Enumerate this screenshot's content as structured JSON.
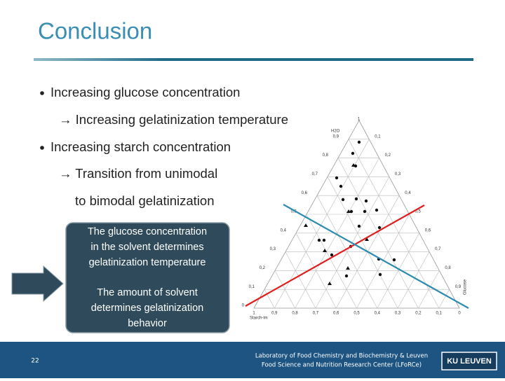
{
  "title": "Conclusion",
  "bullets": [
    {
      "text": "Increasing glucose concentration",
      "sub": [
        "→ Increasing gelatinization temperature"
      ]
    },
    {
      "text": "Increasing starch concentration",
      "sub": [
        "→ Transition from unimodal",
        "to bimodal gelatinization"
      ]
    }
  ],
  "box": {
    "top": [
      "The glucose concentration",
      "in the solvent determines",
      "gelatinization temperature"
    ],
    "bottom": [
      "The amount of solvent",
      "determines gelatinization",
      "behavior"
    ]
  },
  "diagram": {
    "top_label": "1",
    "top_name": "H2O",
    "right_name": "Glucose",
    "left_name": "Starch-lm",
    "left_labels": [
      "0,9",
      "0,8",
      "0,7",
      "0,6",
      "0,5",
      "0,4",
      "0,3",
      "0,2",
      "0,1",
      "0"
    ],
    "right_labels": [
      "0,1",
      "0,2",
      "0,3",
      "0,4",
      "0,5",
      "0,6",
      "0,7",
      "0,8",
      "0,9"
    ],
    "bottom_labels": [
      "1",
      "0,9",
      "0,8",
      "0,7",
      "0,6",
      "0,5",
      "0,4",
      "0,3",
      "0,2",
      "0,1",
      "0"
    ]
  },
  "footer": {
    "page_number": "22",
    "lab": [
      "Laboratory of Food Chemistry and Biochemistry & Leuven",
      "Food Science and Nutrition Research Center (LFoRCe)"
    ],
    "logo": "KU LEUVEN"
  }
}
